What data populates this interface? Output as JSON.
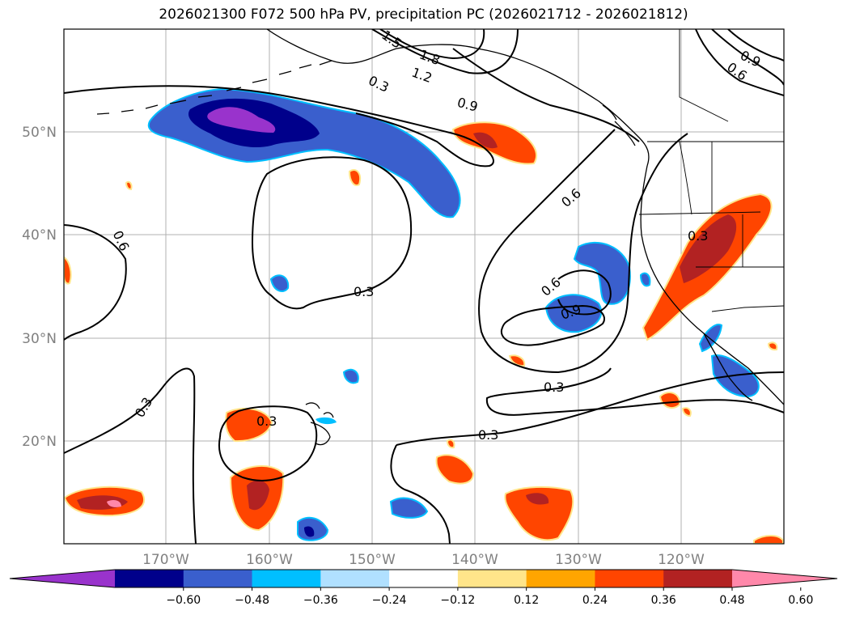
{
  "title": "2026021300 F072 500 hPa PV, precipitation PC (2026021712 - 2026021812)",
  "map": {
    "lat_labels": [
      "50°N",
      "40°N",
      "30°N",
      "20°N"
    ],
    "lon_labels": [
      "170°W",
      "160°W",
      "150°W",
      "140°W",
      "130°W",
      "120°W"
    ],
    "pv_contour_labels": [
      "1.5",
      "1.8",
      "1.2",
      "0.9",
      "0.3",
      "0.9",
      "0.6",
      "0.6",
      "0.3",
      "0.6",
      "0.6",
      "0.9",
      "0.3",
      "0.3",
      "0.3",
      "0.3",
      "0.3"
    ]
  },
  "colorbar": {
    "ticks": [
      "−0.60",
      "−0.48",
      "−0.36",
      "−0.24",
      "−0.12",
      "0.12",
      "0.24",
      "0.36",
      "0.48",
      "0.60"
    ],
    "colors": [
      "#9933cc",
      "#00008b",
      "#3a5fcd",
      "#00bfff",
      "#b0e0ff",
      "#ffffff",
      "#ffe58a",
      "#ffa500",
      "#ff4500",
      "#b22222",
      "#ff88aa"
    ]
  }
}
